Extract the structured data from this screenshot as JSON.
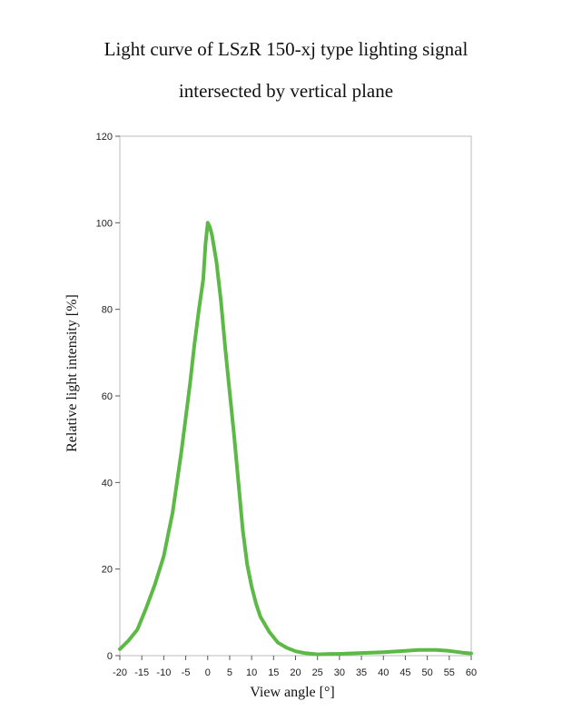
{
  "chart_data": {
    "type": "line",
    "title_line1": "Light curve of LSzR 150-xj type lighting signal",
    "title_line2": "intersected by vertical plane",
    "xlabel": "View angle [°]",
    "ylabel": "Relative light intensity [%]",
    "xlim": [
      -20,
      60
    ],
    "ylim": [
      0,
      120
    ],
    "xticks": [
      -20,
      -15,
      -10,
      -5,
      0,
      5,
      10,
      15,
      20,
      25,
      30,
      35,
      40,
      45,
      50,
      55,
      60
    ],
    "yticks": [
      0,
      20,
      40,
      60,
      80,
      100,
      120
    ],
    "grid": false,
    "line_color": "#5cb946",
    "series": [
      {
        "x": [
          -20,
          -18,
          -16,
          -14,
          -12,
          -10,
          -9,
          -8,
          -7,
          -6,
          -5,
          -4,
          -3,
          -2,
          -1,
          -0.5,
          0,
          0.5,
          1,
          2,
          3,
          4,
          5,
          6,
          7,
          8,
          9,
          10,
          11,
          12,
          14,
          16,
          18,
          20,
          22,
          25,
          28,
          30,
          35,
          40,
          45,
          48,
          50,
          52,
          55,
          58,
          60
        ],
        "y": [
          1.5,
          3.5,
          6,
          11,
          16.5,
          23,
          28,
          33,
          40,
          47,
          55,
          63,
          72,
          80,
          87,
          95,
          100,
          99,
          97,
          91,
          82,
          71,
          61,
          51,
          40,
          29,
          21,
          16,
          12,
          9,
          5.5,
          3,
          1.8,
          1,
          0.6,
          0.3,
          0.4,
          0.4,
          0.6,
          0.8,
          1.1,
          1.3,
          1.3,
          1.3,
          1.1,
          0.7,
          0.5
        ]
      }
    ]
  }
}
